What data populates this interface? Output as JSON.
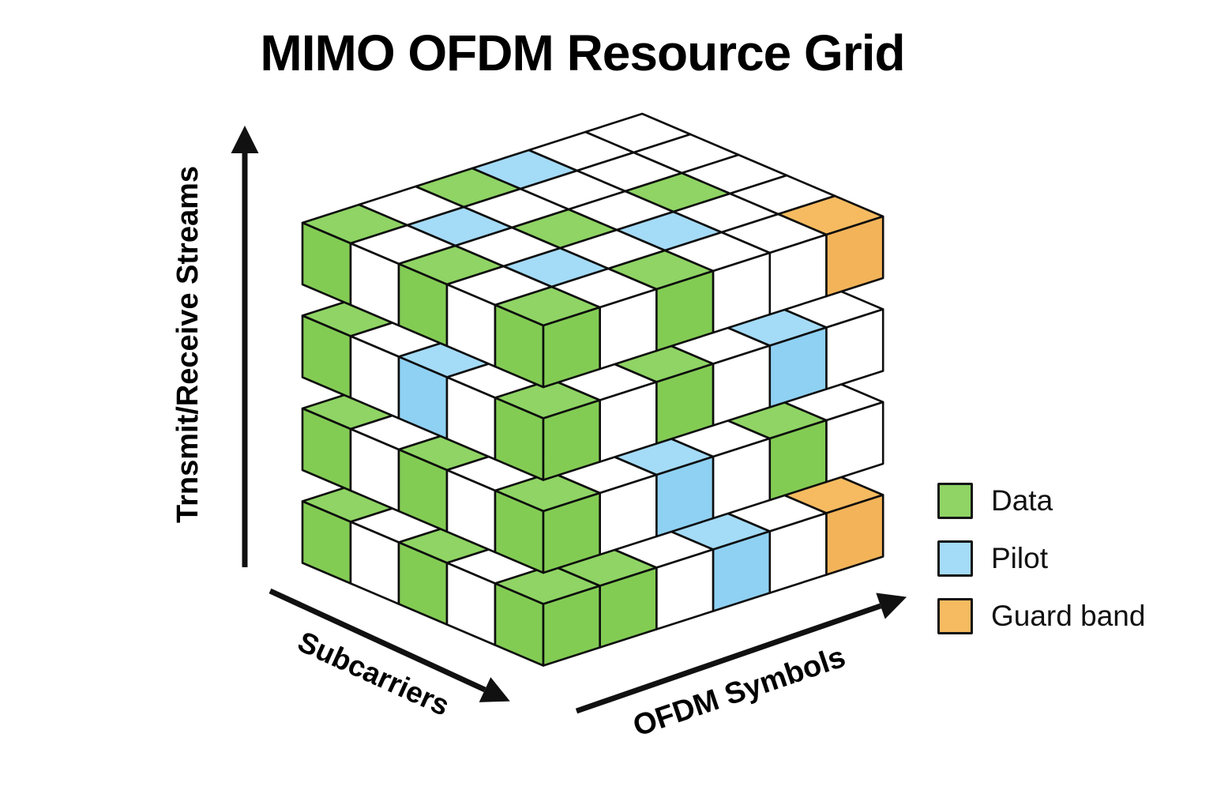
{
  "title": "MIMO OFDM Resource Grid",
  "axes": {
    "streams_label": "Trnsmit/Receive Streams",
    "subcarriers_label": "Subcarriers",
    "symbols_label": "OFDM Symbols"
  },
  "legend": {
    "items": [
      {
        "label": "Data",
        "color": "#8fd464"
      },
      {
        "label": "Pilot",
        "color": "#a4dbf7"
      },
      {
        "label": "Guard band",
        "color": "#f6bb60"
      }
    ]
  },
  "colors": {
    "data_top": "#8fd464",
    "data_side": "#83cc54",
    "pilot_top": "#a4dbf7",
    "pilot_side": "#8fd1f3",
    "guard_top": "#f6bb60",
    "guard_side": "#f3b359",
    "empty": "#ffffff",
    "outline": "#0d0d0d",
    "axis": "#111111",
    "background": "#ffffff"
  },
  "grid": {
    "num_layers": 4,
    "subcarriers_per_layer": 5,
    "symbols_per_layer": 6,
    "cell_legend": {
      "G": "Data",
      "B": "Pilot",
      "O": "Guard band",
      "W": "Empty"
    },
    "layers": [
      {
        "name": "layer-1-top",
        "rows": [
          "GWGBWW",
          "WBWWWW",
          "GWGWGW",
          "WBWBWW",
          "GWGWWO"
        ]
      },
      {
        "name": "layer-2",
        "rows": [
          "GWWWWW",
          "WWWWWW",
          "BWWWWW",
          "WWWWWW",
          "GWGWBW"
        ]
      },
      {
        "name": "layer-3",
        "rows": [
          "GWWWWW",
          "WWWWWW",
          "GWWWWW",
          "WWWWGW",
          "GWBWGW"
        ]
      },
      {
        "name": "layer-4-bottom",
        "rows": [
          "GWWWWW",
          "WWWWWW",
          "GWWWWW",
          "WWWWWW",
          "GGWBWO"
        ]
      }
    ]
  }
}
